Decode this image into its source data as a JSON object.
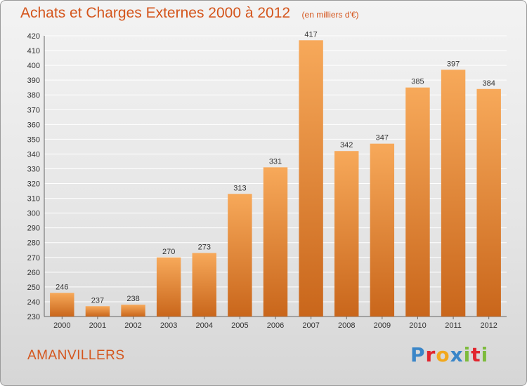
{
  "header": {
    "title": "Achats et Charges Externes 2000 à 2012",
    "subtitle": "(en milliers d'€)"
  },
  "footer": {
    "town": "AMANVILLERS",
    "logo_letters": [
      "P",
      "r",
      "o",
      "x",
      "i",
      "t",
      "i"
    ],
    "logo_colors": [
      "#3a86c8",
      "#e1252e",
      "#f2a81d",
      "#3a86c8",
      "#7dbb3c",
      "#e1252e",
      "#7dbb3c"
    ]
  },
  "chart_data": {
    "type": "bar",
    "title": "Achats et Charges Externes 2000 à 2012",
    "subtitle": "(en milliers d'€)",
    "categories": [
      "2000",
      "2001",
      "2002",
      "2003",
      "2004",
      "2005",
      "2006",
      "2007",
      "2008",
      "2009",
      "2010",
      "2011",
      "2012"
    ],
    "values": [
      246,
      237,
      238,
      270,
      273,
      313,
      331,
      417,
      342,
      347,
      385,
      397,
      384
    ],
    "ylim": [
      230,
      420
    ],
    "yticks": [
      230,
      240,
      250,
      260,
      270,
      280,
      290,
      300,
      310,
      320,
      330,
      340,
      350,
      360,
      370,
      380,
      390,
      400,
      410,
      420
    ],
    "xlabel": "",
    "ylabel": "",
    "grid": true,
    "bar_color_light": "#f7a95a",
    "bar_color_dark": "#c9661b",
    "text_color": "#d4551c"
  }
}
